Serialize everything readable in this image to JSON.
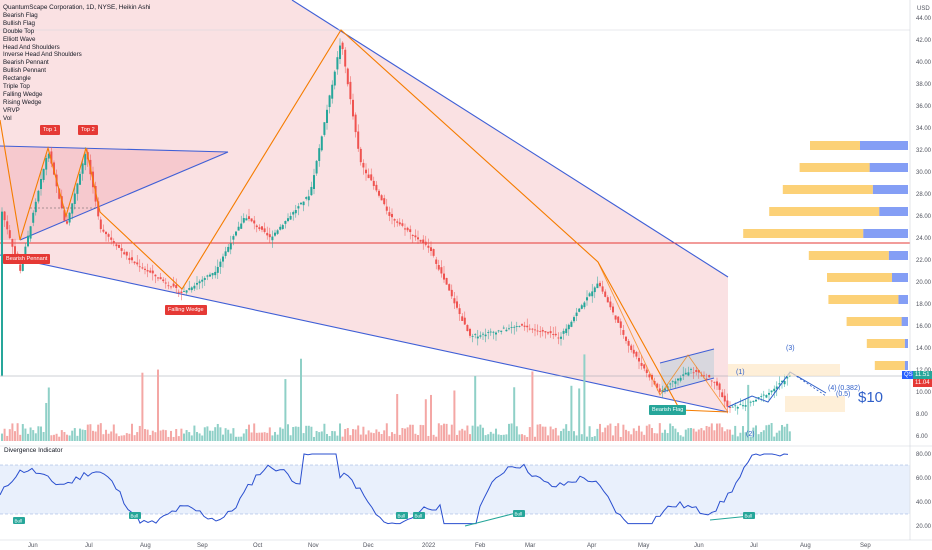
{
  "header": {
    "title": "QuantumScape Corporation, 1D, NYSE, Heikin Ashi",
    "indicators": [
      "Bearish Flag",
      "Bullish Flag",
      "Double Top",
      "Elliott Wave",
      "Head And Shoulders",
      "Inverse Head And Shoulders",
      "Bearish Pennant",
      "Bullish Pennant",
      "Rectangle",
      "Triple Top",
      "Falling Wedge",
      "Rising Wedge",
      "VRVP",
      "Vol"
    ]
  },
  "price_axis": {
    "unit": "USD",
    "ticks": [
      "44.00",
      "42.00",
      "40.00",
      "38.00",
      "36.00",
      "34.00",
      "32.00",
      "30.00",
      "28.00",
      "26.00",
      "24.00",
      "22.00",
      "20.00",
      "18.00",
      "16.00",
      "14.00",
      "12.00",
      "10.00",
      "8.00",
      "6.00"
    ],
    "last_price": "11.51",
    "symbol_badge": "QS",
    "second_price": "11.04"
  },
  "time_axis": [
    "Jun",
    "Jul",
    "Aug",
    "Sep",
    "Oct",
    "Nov",
    "Dec",
    "2022",
    "Feb",
    "Mar",
    "Apr",
    "May",
    "Jun",
    "Jul",
    "Aug",
    "Sep"
  ],
  "annotations": {
    "top1": "Top 1",
    "top2": "Top 2",
    "bearish_pennant": "Bearish Pennant",
    "falling_wedge": "Falling Wedge",
    "bearish_flag": "Bearish Flag",
    "wave1": "(1)",
    "wave2": "(2)",
    "wave3": "(3)",
    "wave4": "(4)",
    "fib382": "(0.382)",
    "fib5": "(0.5)",
    "target": "$10"
  },
  "divergence": {
    "title": "Divergence Indicator",
    "ticks": [
      "80.00",
      "60.00",
      "40.00",
      "20.00"
    ],
    "bull_label": "Bull"
  },
  "chart_data": {
    "type": "line",
    "title": "QuantumScape Corporation, 1D, NYSE, Heikin Ashi",
    "x": [
      "Jun",
      "Jul",
      "Aug",
      "Sep",
      "Oct",
      "Nov",
      "Dec",
      "2022",
      "Feb",
      "Mar",
      "Apr",
      "May",
      "Jun",
      "Jul"
    ],
    "series": [
      {
        "name": "QS",
        "values": [
          27,
          32,
          21,
          19,
          24,
          42,
          29,
          24,
          15,
          16,
          20,
          9,
          9,
          11.5
        ]
      }
    ],
    "ylim": [
      6,
      44
    ],
    "colors": {
      "up": "#26a69a",
      "down": "#ef5350",
      "trend": "#3f5fd6",
      "wave": "#f57c00",
      "resistance": "#e53935"
    }
  }
}
